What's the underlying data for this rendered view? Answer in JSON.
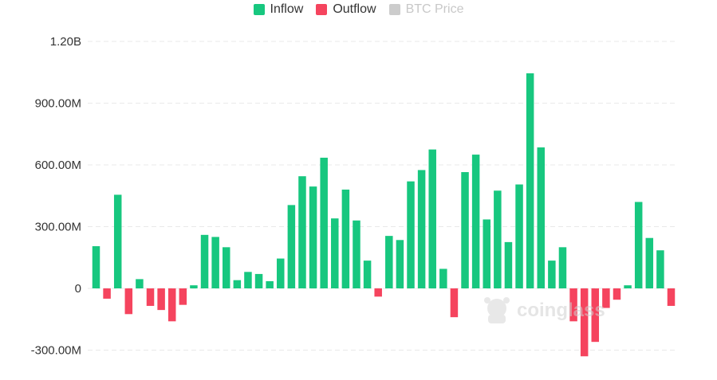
{
  "chart_data": {
    "type": "bar",
    "title": "",
    "xlabel": "",
    "ylabel": "",
    "ylim": [
      -350000000,
      1250000000
    ],
    "y_ticks": [
      {
        "value": 1200000000,
        "label": "1.20B"
      },
      {
        "value": 900000000,
        "label": "900.00M"
      },
      {
        "value": 600000000,
        "label": "600.00M"
      },
      {
        "value": 300000000,
        "label": "300.00M"
      },
      {
        "value": 0,
        "label": "0"
      },
      {
        "value": -300000000,
        "label": "-300.00M"
      }
    ],
    "grid": true,
    "legend_position": "top-center",
    "legend": [
      {
        "name": "Inflow",
        "color": "#17c77f",
        "enabled": true
      },
      {
        "name": "Outflow",
        "color": "#f5445e",
        "enabled": true
      },
      {
        "name": "BTC Price",
        "color": "#cccccc",
        "enabled": false
      }
    ],
    "colors": {
      "inflow": "#17c77f",
      "outflow": "#f5445e",
      "axis_text": "#333333",
      "grid": "#e9e9e9"
    },
    "values": [
      205000000,
      -50000000,
      455000000,
      -125000000,
      45000000,
      -85000000,
      -105000000,
      -160000000,
      -80000000,
      15000000,
      260000000,
      250000000,
      200000000,
      40000000,
      80000000,
      70000000,
      35000000,
      145000000,
      405000000,
      545000000,
      495000000,
      635000000,
      340000000,
      480000000,
      330000000,
      135000000,
      -40000000,
      255000000,
      235000000,
      520000000,
      575000000,
      675000000,
      95000000,
      -140000000,
      565000000,
      650000000,
      335000000,
      475000000,
      225000000,
      505000000,
      1045000000,
      685000000,
      135000000,
      200000000,
      -160000000,
      -330000000,
      -260000000,
      -95000000,
      -55000000,
      15000000,
      420000000,
      245000000,
      185000000,
      -85000000
    ],
    "watermark": "coinglass"
  }
}
